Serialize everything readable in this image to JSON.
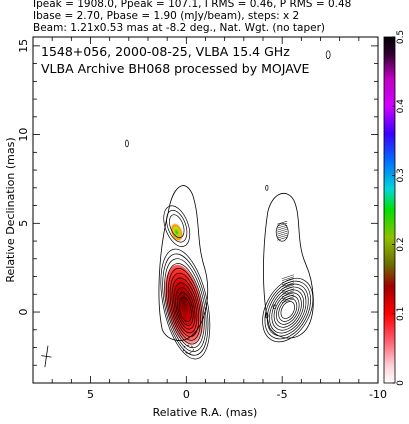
{
  "header": {
    "line1": "Ipeak = 1908.0, Ppeak = 107.1, I RMS = 0.46, P RMS = 0.48",
    "line2": "Ibase = 2.70, Pbase = 1.90 (mJy/beam), steps: x 2",
    "line3": "Beam: 1.21x0.53 mas at -8.2 deg., Nat. Wgt. (no taper)"
  },
  "chart_data": {
    "type": "contour",
    "title_line1": "1548+056, 2000-08-25, VLBA 15.4 GHz",
    "title_line2": "VLBA Archive BH068 processed by MOJAVE",
    "xlabel": "Relative R.A. (mas)",
    "ylabel": "Relative Declination (mas)",
    "xlim": [
      8,
      -10
    ],
    "ylim": [
      -4,
      15.5
    ],
    "x_ticks": [
      5,
      0,
      -5,
      -10
    ],
    "y_ticks": [
      0,
      5,
      10,
      15
    ],
    "colorbar": {
      "range": [
        0,
        0.5
      ],
      "ticks": [
        0,
        0.1,
        0.2,
        0.3,
        0.4,
        0.5
      ],
      "colors": [
        "#ffffff",
        "#ff9aa0",
        "#ff2020",
        "#b00000",
        "#6b6b00",
        "#6fa000",
        "#48d000",
        "#00d0d0",
        "#0090ff",
        "#2020ff",
        "#9000ff",
        "#ff00ff",
        "#a000a0",
        "#400040",
        "#000000"
      ]
    },
    "panels": {
      "total_intensity": {
        "core": [
          0,
          0
        ],
        "jet_knots": [
          [
            0.5,
            4.5
          ],
          [
            -0.2,
            3.0
          ]
        ],
        "levels_count": 11
      },
      "polarization": {
        "x_offset": -5.5,
        "core": [
          -5.5,
          0
        ],
        "jet_knots": [
          [
            -5.0,
            4.5
          ]
        ],
        "levels_count": 9
      }
    },
    "beam": {
      "major": 1.21,
      "minor": 0.53,
      "pa": -8.2,
      "position": [
        7.3,
        -2.5
      ]
    }
  }
}
